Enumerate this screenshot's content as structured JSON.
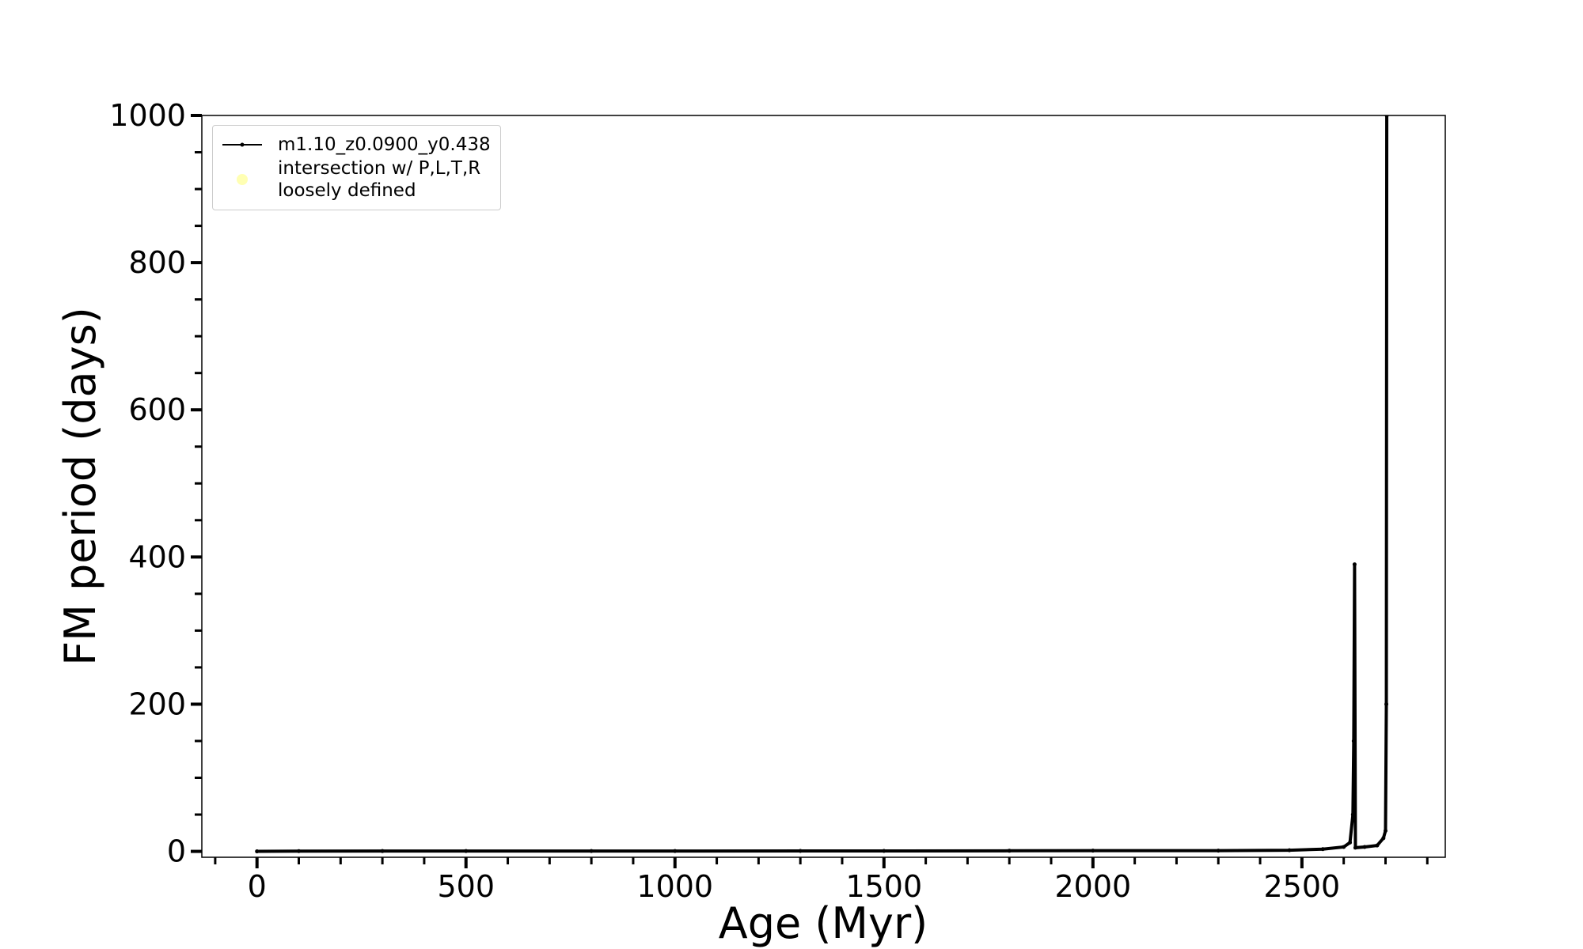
{
  "chart_data": {
    "type": "line",
    "xlabel": "Age (Myr)",
    "ylabel": "FM period (days)",
    "xlim": [
      -132,
      2843
    ],
    "ylim": [
      -8,
      1000
    ],
    "xticks": [
      0,
      500,
      1000,
      1500,
      2000,
      2500
    ],
    "yticks": [
      0,
      200,
      400,
      600,
      800,
      1000
    ],
    "xminorticks": [
      -100,
      0,
      100,
      200,
      300,
      400,
      500,
      600,
      700,
      800,
      900,
      1000,
      1100,
      1200,
      1300,
      1400,
      1500,
      1600,
      1700,
      1800,
      1900,
      2000,
      2100,
      2200,
      2300,
      2400,
      2500,
      2600,
      2700,
      2800
    ],
    "yminorticks": [
      0,
      50,
      100,
      150,
      200,
      250,
      300,
      350,
      400,
      450,
      500,
      550,
      600,
      650,
      700,
      750,
      800,
      850,
      900,
      950,
      1000
    ],
    "legend": "upper left",
    "series": [
      {
        "name": "m1.10_z0.0900_y0.438",
        "color": "#000000",
        "x": [
          0,
          100,
          300,
          500,
          800,
          1000,
          1300,
          1500,
          1800,
          2000,
          2300,
          2470,
          2550,
          2600,
          2615,
          2622,
          2624,
          2626,
          2628,
          2650,
          2680,
          2695,
          2700,
          2702,
          2703
        ],
        "values": [
          0,
          0.3,
          0.4,
          0.5,
          0.5,
          0.5,
          0.6,
          0.6,
          0.8,
          1,
          1,
          1.5,
          3,
          6,
          12,
          50,
          150,
          390,
          5,
          6,
          8,
          18,
          28,
          200,
          1000
        ]
      },
      {
        "name": "intersection w/ P,L,T,R\nloosely defined",
        "color": "#ffffb3",
        "x": [],
        "values": []
      }
    ]
  }
}
